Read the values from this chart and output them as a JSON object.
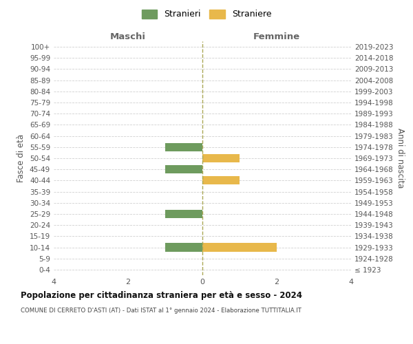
{
  "age_groups": [
    "100+",
    "95-99",
    "90-94",
    "85-89",
    "80-84",
    "75-79",
    "70-74",
    "65-69",
    "60-64",
    "55-59",
    "50-54",
    "45-49",
    "40-44",
    "35-39",
    "30-34",
    "25-29",
    "20-24",
    "15-19",
    "10-14",
    "5-9",
    "0-4"
  ],
  "birth_years": [
    "≤ 1923",
    "1924-1928",
    "1929-1933",
    "1934-1938",
    "1939-1943",
    "1944-1948",
    "1949-1953",
    "1954-1958",
    "1959-1963",
    "1964-1968",
    "1969-1973",
    "1974-1978",
    "1979-1983",
    "1984-1988",
    "1989-1993",
    "1994-1998",
    "1999-2003",
    "2004-2008",
    "2009-2013",
    "2014-2018",
    "2019-2023"
  ],
  "maschi": [
    0,
    0,
    0,
    0,
    0,
    0,
    0,
    0,
    0,
    -1,
    0,
    -1,
    0,
    0,
    0,
    -1,
    0,
    0,
    -1,
    0,
    0
  ],
  "femmine": [
    0,
    0,
    0,
    0,
    0,
    0,
    0,
    0,
    0,
    0,
    1,
    0,
    1,
    0,
    0,
    0,
    0,
    0,
    2,
    0,
    0
  ],
  "color_maschi": "#6e9b5e",
  "color_femmine": "#e8b84b",
  "title": "Popolazione per cittadinanza straniera per età e sesso - 2024",
  "subtitle": "COMUNE DI CERRETO D'ASTI (AT) - Dati ISTAT al 1° gennaio 2024 - Elaborazione TUTTITALIA.IT",
  "xlabel_left": "Maschi",
  "xlabel_right": "Femmine",
  "ylabel_left": "Fasce di età",
  "ylabel_right": "Anni di nascita",
  "legend_maschi": "Stranieri",
  "legend_femmine": "Straniere",
  "xlim": [
    -4,
    4
  ],
  "xticks": [
    -4,
    -2,
    0,
    2,
    4
  ],
  "xticklabels": [
    "4",
    "2",
    "0",
    "2",
    "4"
  ],
  "background_color": "#ffffff",
  "grid_color": "#d0d0d0",
  "bar_height": 0.75
}
